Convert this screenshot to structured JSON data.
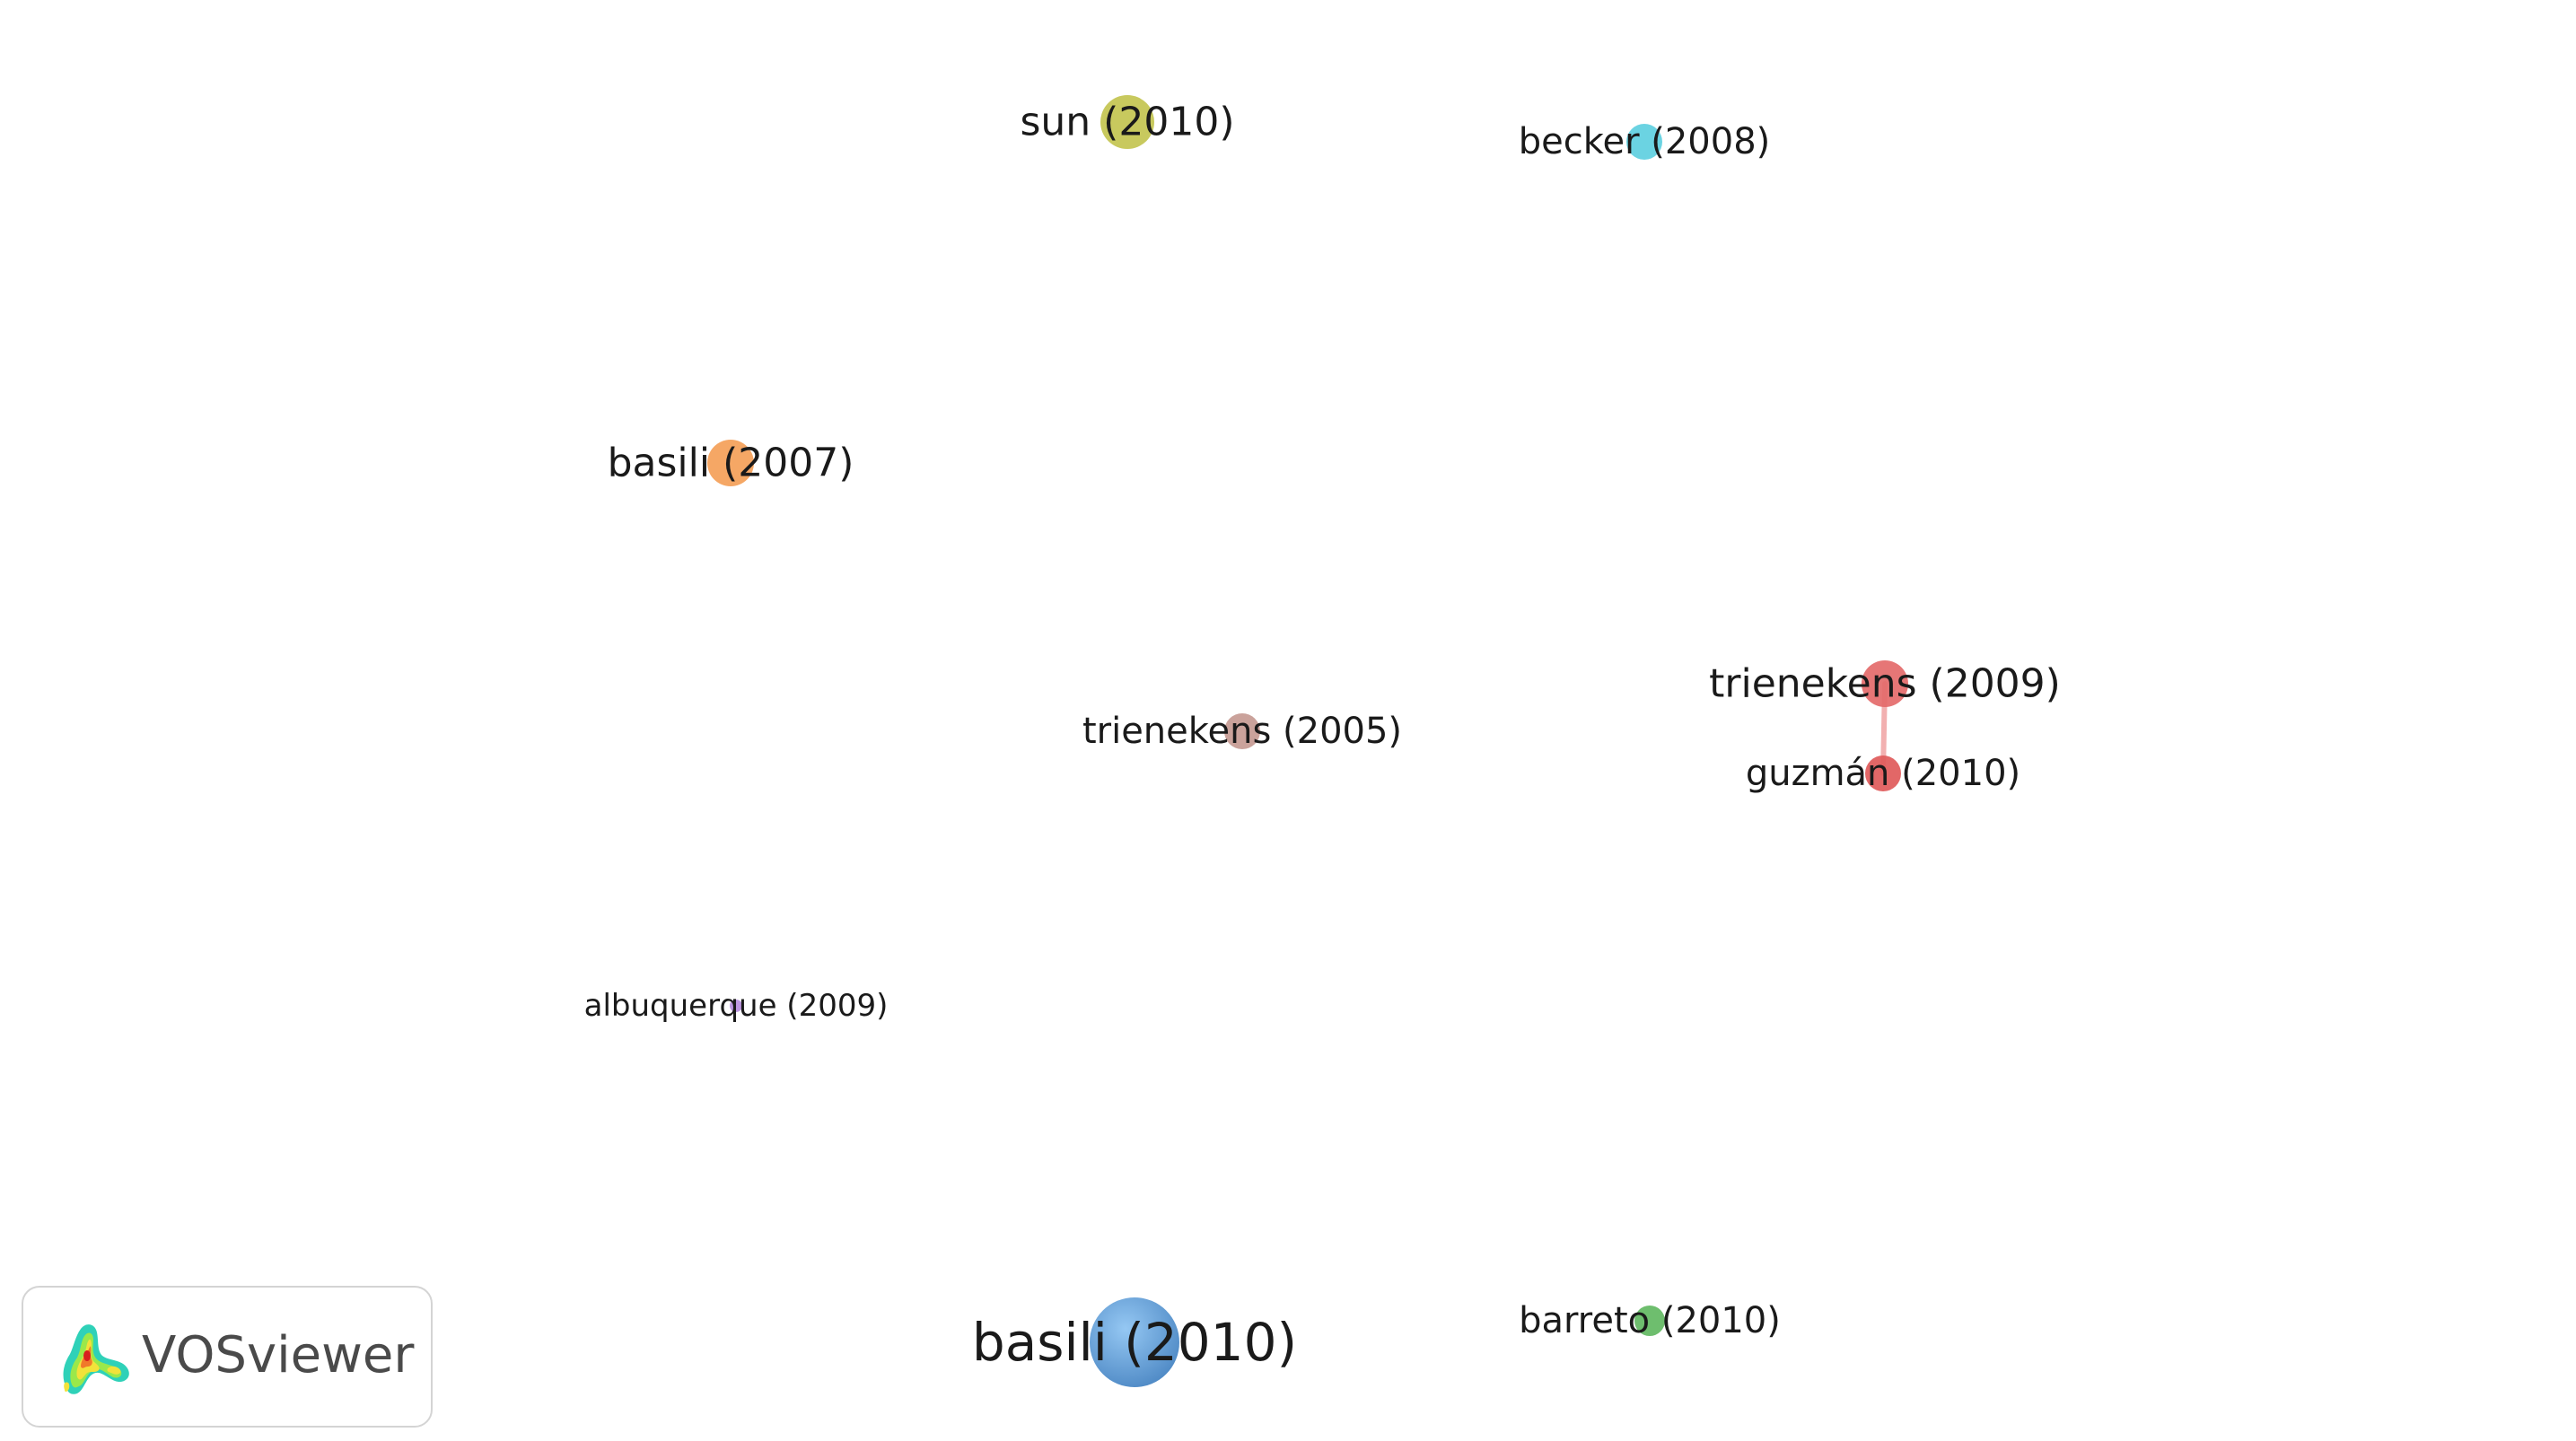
{
  "nodes": [
    {
      "id": "sun-2010",
      "label": "sun (2010)",
      "color": "#c3c450",
      "size": "medium"
    },
    {
      "id": "becker-2008",
      "label": "becker (2008)",
      "color": "#5ecfe0",
      "size": "small"
    },
    {
      "id": "basili-2007",
      "label": "basili (2007)",
      "color": "#f4a058",
      "size": "medium"
    },
    {
      "id": "trienekens-2005",
      "label": "trienekens (2005)",
      "color": "#c59a92",
      "size": "small"
    },
    {
      "id": "trienekens-2009",
      "label": "trienekens (2009)",
      "color": "#e46a6a",
      "size": "medium"
    },
    {
      "id": "guzman-2010",
      "label": "guzmán (2010)",
      "color": "#e05a5a",
      "size": "small"
    },
    {
      "id": "albuquerque-2009",
      "label": "albuquerque (2009)",
      "color": "#b98ee0",
      "size": "tiny"
    },
    {
      "id": "basili-2010",
      "label": "basili (2010)",
      "color": "#5b9fdc",
      "size": "large"
    },
    {
      "id": "barreto-2010",
      "label": "barreto (2010)",
      "color": "#62b862",
      "size": "small"
    }
  ],
  "links": [
    {
      "source": "trienekens-2009",
      "target": "guzman-2010",
      "color": "#f2b0b0"
    }
  ],
  "branding": {
    "logo_text": "VOSviewer"
  }
}
